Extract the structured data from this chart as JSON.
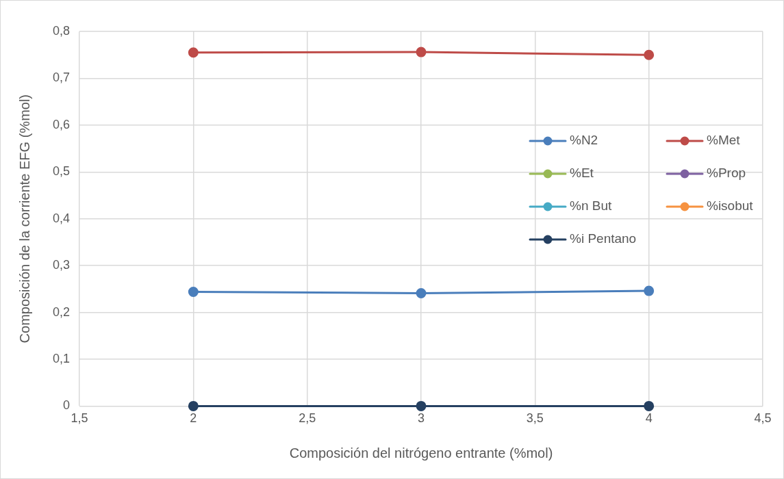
{
  "chart_data": {
    "type": "line",
    "xlabel": "Composición del nitrógeno entrante (%mol)",
    "ylabel": "Composición de la corriente EFG (%mol)",
    "x": [
      2,
      3,
      4
    ],
    "series": [
      {
        "name": "%N2",
        "color": "#4a7ebb",
        "values": [
          0.244,
          0.241,
          0.246
        ]
      },
      {
        "name": "%Met",
        "color": "#be4b48",
        "values": [
          0.755,
          0.756,
          0.75
        ]
      },
      {
        "name": "%Et",
        "color": "#98b954",
        "values": [
          null,
          null,
          null
        ]
      },
      {
        "name": "%Prop",
        "color": "#7d60a0",
        "values": [
          null,
          null,
          null
        ]
      },
      {
        "name": "%n But",
        "color": "#46aac5",
        "values": [
          null,
          null,
          null
        ]
      },
      {
        "name": "%isobut",
        "color": "#f69240",
        "values": [
          null,
          null,
          null
        ]
      },
      {
        "name": "%i Pentano",
        "color": "#254061",
        "values": [
          0,
          0,
          0
        ]
      }
    ],
    "xlim": [
      1.5,
      4.5
    ],
    "xticks": [
      {
        "value": 1.5,
        "label": "1,5"
      },
      2,
      {
        "value": 2.5,
        "label": "2,5"
      },
      3,
      {
        "value": 3.5,
        "label": "3,5"
      },
      4,
      {
        "value": 4.5,
        "label": "4,5"
      }
    ],
    "ylim": [
      0,
      0.8
    ],
    "yticks": [
      0,
      {
        "value": 0.1,
        "label": "0,1"
      },
      {
        "value": 0.2,
        "label": "0,2"
      },
      {
        "value": 0.3,
        "label": "0,3"
      },
      {
        "value": 0.4,
        "label": "0,4"
      },
      {
        "value": 0.5,
        "label": "0,5"
      },
      {
        "value": 0.6,
        "label": "0,6"
      },
      {
        "value": 0.7,
        "label": "0,7"
      },
      {
        "value": 0.8,
        "label": "0,8"
      }
    ],
    "grid": true,
    "legend": "right",
    "marker": "circle",
    "line_style": "solid"
  }
}
